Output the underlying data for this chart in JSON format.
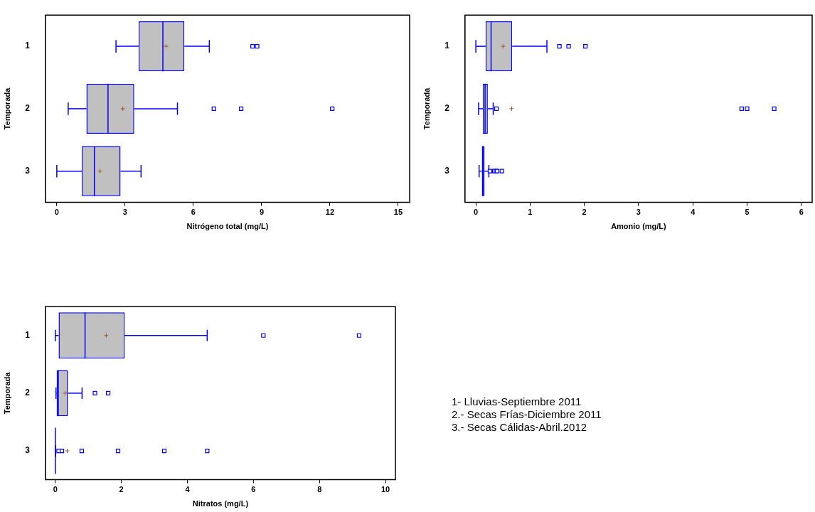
{
  "chart_data": [
    {
      "type": "box",
      "orientation": "horizontal",
      "categories": [
        "1",
        "2",
        "3"
      ],
      "xlabel": "Nitrógeno total (mg/L)",
      "ylabel": "Temporada",
      "xlim": [
        -0.5,
        15.5
      ],
      "xticks": [
        0,
        3,
        6,
        9,
        12,
        15
      ],
      "color": "#0000ff",
      "grid": false,
      "legend": false,
      "boxes": [
        {
          "low": 2.6,
          "q1": 3.6,
          "median": 4.66,
          "q3": 5.6,
          "high": 6.7,
          "mean": 4.8,
          "outliers": [
            8.6,
            8.8
          ]
        },
        {
          "low": 0.5,
          "q1": 1.3,
          "median": 2.25,
          "q3": 3.4,
          "high": 5.3,
          "mean": 2.9,
          "outliers": [
            6.9,
            8.1,
            12.1
          ]
        },
        {
          "low": 0,
          "q1": 1.1,
          "median": 1.65,
          "q3": 2.8,
          "high": 3.7,
          "mean": 1.9
        }
      ]
    },
    {
      "type": "box",
      "orientation": "horizontal",
      "categories": [
        "1",
        "2",
        "3"
      ],
      "xlabel": "Amonio (mg/L)",
      "ylabel": "Temporada",
      "xlim": [
        -0.2,
        6.2
      ],
      "xticks": [
        0,
        1,
        2,
        3,
        4,
        5,
        6
      ],
      "color": "#0000ff",
      "grid": false,
      "legend": false,
      "boxes": [
        {
          "low": 0,
          "q1": 0.18,
          "median": 0.28,
          "q3": 0.67,
          "high": 1.31,
          "mean": 0.5,
          "outliers": [
            1.54,
            1.71,
            2.02
          ]
        },
        {
          "low": 0.05,
          "q1": 0.13,
          "median": 0.17,
          "q3": 0.22,
          "high": 0.32,
          "mean": 0.66,
          "outliers": [
            0.38,
            4.9,
            5.0,
            5.5
          ]
        },
        {
          "low": 0.06,
          "q1": 0.11,
          "median": 0.13,
          "q3": 0.16,
          "high": 0.24,
          "outliers": [
            0.26,
            0.34,
            0.37,
            0.39,
            0.48
          ]
        }
      ]
    },
    {
      "type": "box",
      "orientation": "horizontal",
      "categories": [
        "1",
        "2",
        "3"
      ],
      "xlabel": "Nitratos (mg/L)",
      "ylabel": "Temporada",
      "xlim": [
        -0.3,
        10.3
      ],
      "xticks": [
        0,
        2,
        4,
        6,
        8,
        10
      ],
      "color": "#0000ff",
      "grid": false,
      "legend": false,
      "boxes": [
        {
          "low": 0,
          "q1": 0.1,
          "median": 0.9,
          "q3": 2.1,
          "high": 4.6,
          "mean": 1.54,
          "outliers": [
            6.3,
            9.2
          ]
        },
        {
          "low": 0.02,
          "q1": 0.04,
          "median": 0.09,
          "q3": 0.38,
          "high": 0.81,
          "mean": 0.3,
          "outliers": [
            1.2,
            1.6
          ]
        },
        {
          "low": 0,
          "q1": 0,
          "median": 0,
          "q3": 0,
          "high": 0,
          "mean": 0.36,
          "outliers": [
            0.1,
            0.2,
            0.8,
            1.9,
            3.3,
            4.6
          ]
        }
      ]
    },
    {
      "type": "other",
      "annotations": [
        "1- Lluvias-Septiembre 2011",
        "2.- Secas Frías-Diciembre 2011",
        "3.- Secas Cálidas-Abril.2012"
      ]
    }
  ]
}
